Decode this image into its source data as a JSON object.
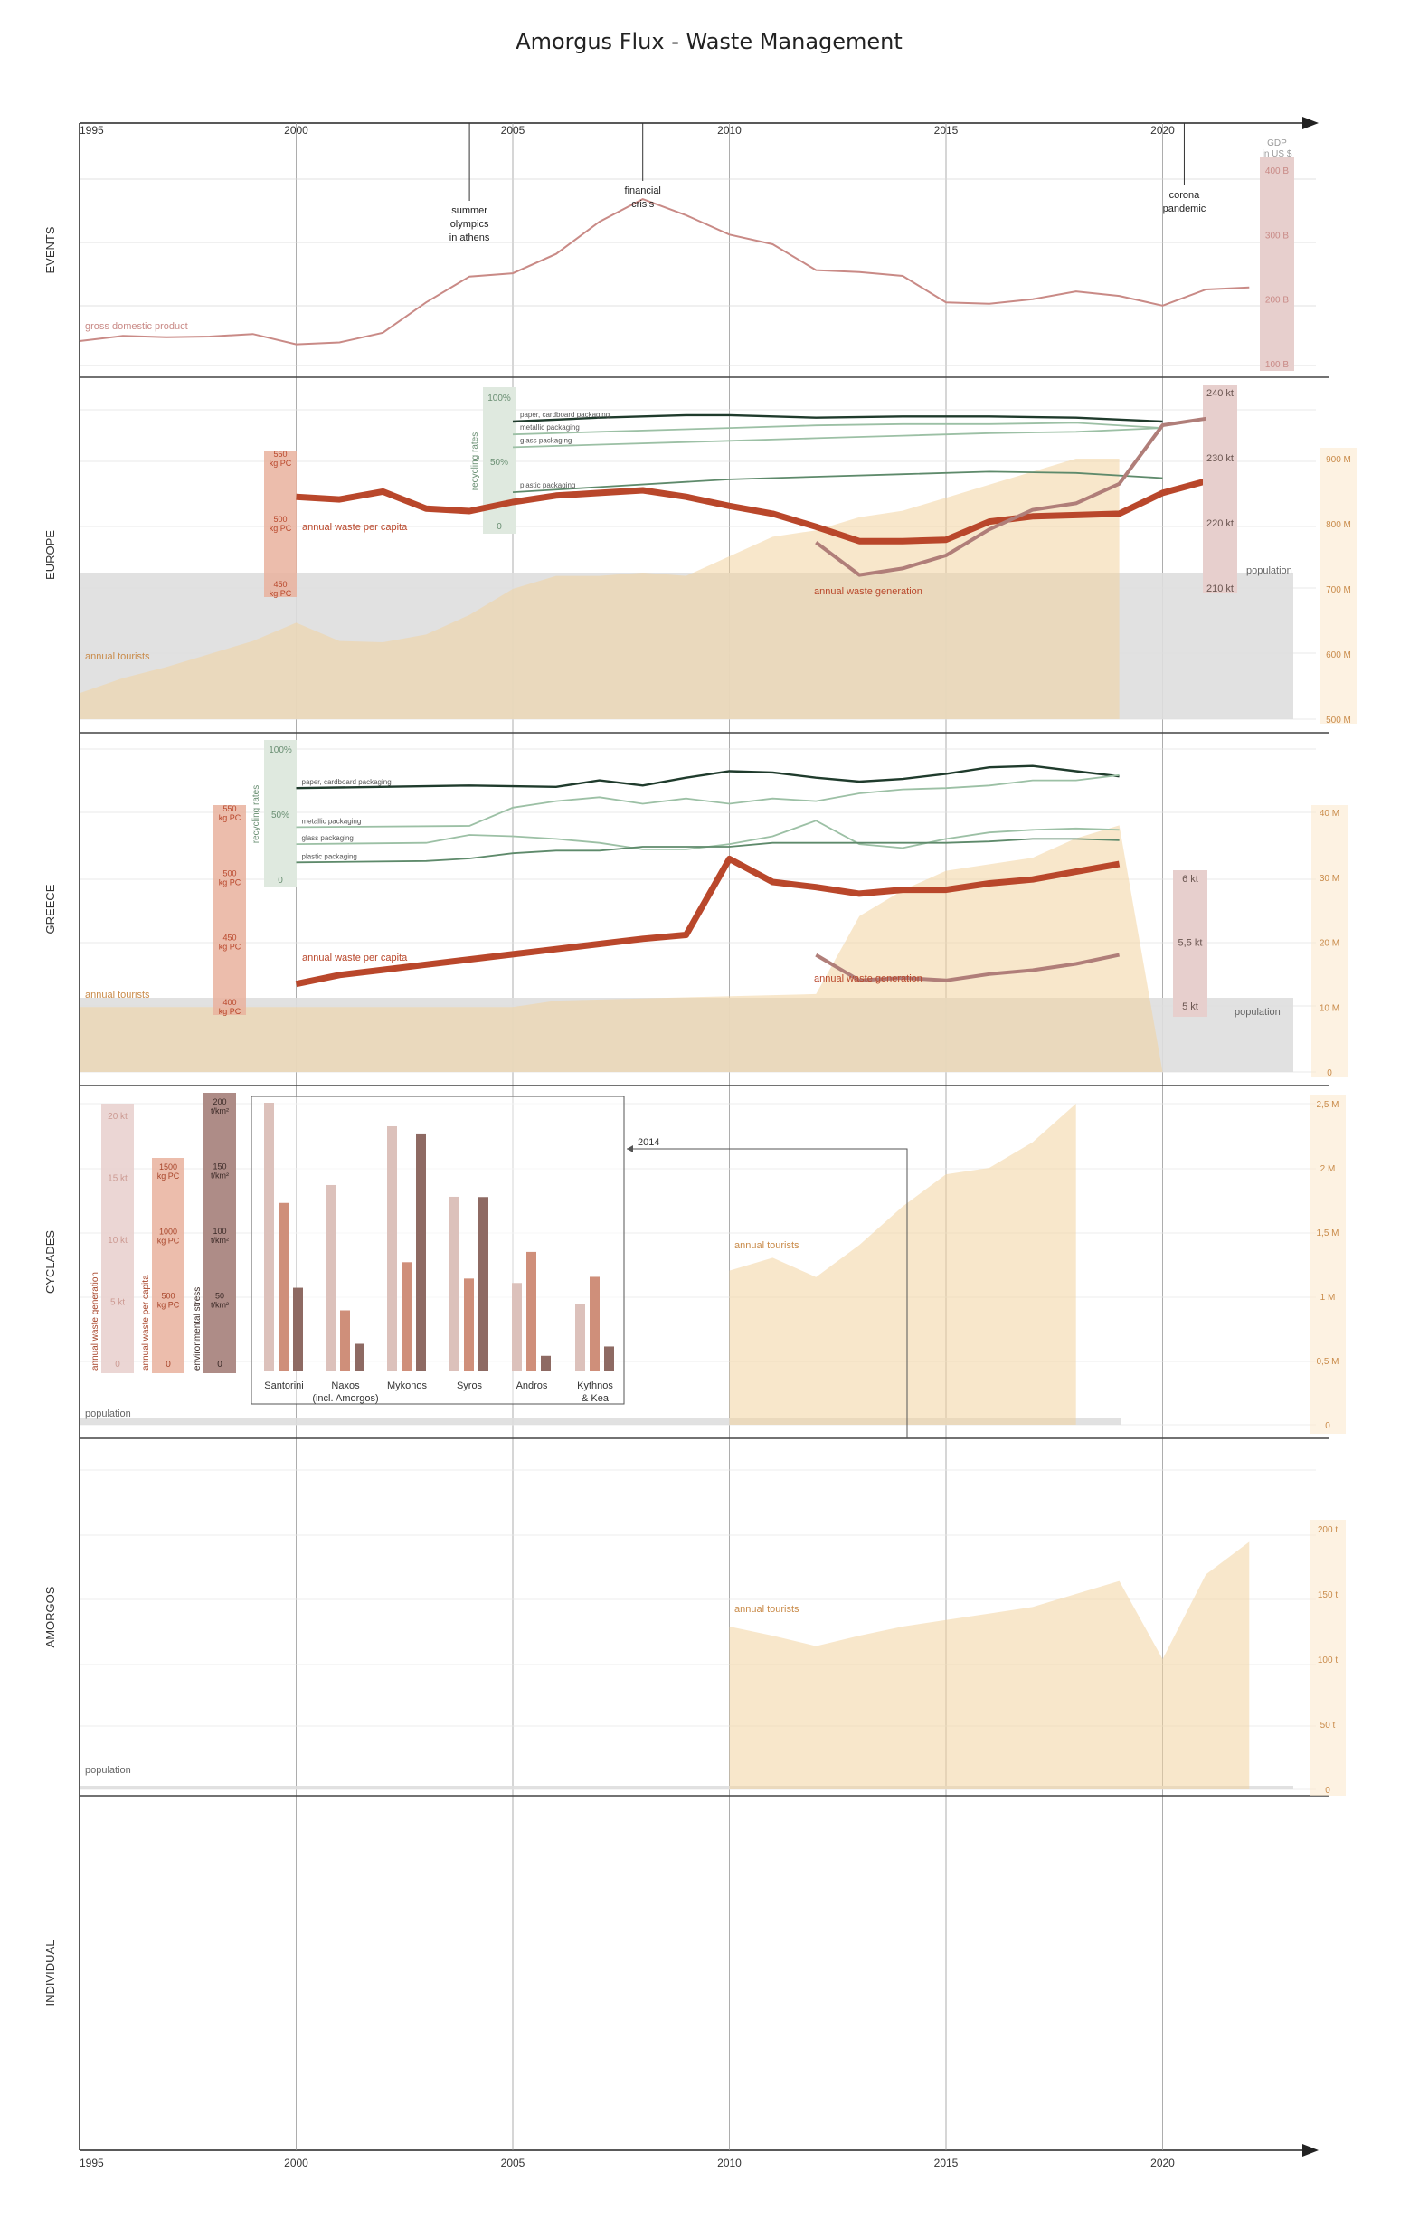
{
  "title": "Amorgus Flux - Waste Management",
  "colors": {
    "gdp": "#c98a86",
    "waste": "#b9472b",
    "waste_gen": "#b07e79",
    "tourists": "#f3d3a0",
    "population": "#dedede",
    "recycle_dark": "#1f3b2c",
    "recycle_mid": "#5e8a6b",
    "recycle_light": "#9cc0a5",
    "box_green": "#dfe9df",
    "box_orange": "#e9b29d",
    "box_pink": "#e7cfcd",
    "box_brown": "#a5807a"
  },
  "chart_data": {
    "type": "line",
    "x_axis": {
      "range": [
        1995,
        2023
      ],
      "tick_labels": [
        "1995",
        "2000",
        "2005",
        "2010",
        "2015",
        "2020"
      ]
    },
    "rows": [
      {
        "key": "events",
        "label": "EVENTS"
      },
      {
        "key": "europe",
        "label": "EUROPE"
      },
      {
        "key": "greece",
        "label": "GREECE"
      },
      {
        "key": "cyclades",
        "label": "CYCLADES"
      },
      {
        "key": "amorgos",
        "label": "AMORGOS"
      },
      {
        "key": "individual",
        "label": "INDIVIDUAL"
      }
    ],
    "events": {
      "annotations": [
        {
          "year": 2004,
          "text": "summer olympics in athens",
          "lines": [
            "summer",
            "olympics",
            "in athens"
          ]
        },
        {
          "year": 2008,
          "text": "financial crisis",
          "lines": [
            "financial",
            "crisis"
          ]
        },
        {
          "year": 2020.5,
          "text": "corona pandemic",
          "lines": [
            "corona",
            "pandemic"
          ]
        }
      ],
      "gdp_axis": {
        "title": "GDP in US $",
        "title_lines": [
          "GDP",
          "in US $"
        ],
        "ticks": [
          "400 B",
          "300 B",
          "200 B",
          "100 B"
        ],
        "ylim": [
          100,
          400
        ]
      },
      "gdp_label": "gross domestic product",
      "gdp_series": {
        "x": [
          1995,
          1996,
          1997,
          1998,
          1999,
          2000,
          2001,
          2002,
          2003,
          2004,
          2005,
          2006,
          2007,
          2008,
          2009,
          2010,
          2011,
          2012,
          2013,
          2014,
          2015,
          2016,
          2017,
          2018,
          2019,
          2020,
          2021,
          2022
        ],
        "y": [
          135,
          143,
          141,
          142,
          146,
          130,
          133,
          148,
          195,
          235,
          240,
          270,
          320,
          355,
          330,
          300,
          285,
          245,
          242,
          236,
          195,
          193,
          200,
          212,
          205,
          190,
          215,
          218
        ]
      }
    },
    "europe": {
      "recycling_axis": {
        "title": "recycling rates",
        "ticks": [
          "100%",
          "50%",
          "0"
        ]
      },
      "waste_pc_axis": {
        "ticks": [
          "550 kg PC",
          "500 kg PC",
          "450 kg PC"
        ],
        "ylim": [
          450,
          550
        ]
      },
      "waste_gen_axis": {
        "ticks": [
          "240 kt",
          "230 kt",
          "220 kt",
          "210 kt"
        ],
        "ylim": [
          210,
          240
        ]
      },
      "tourist_axis": {
        "ticks": [
          "900 M",
          "800 M",
          "700 M",
          "600 M",
          "500 M"
        ],
        "ylim": [
          500,
          900
        ]
      },
      "labels": {
        "waste_pc": "annual waste per capita",
        "waste_gen": "annual waste generation",
        "tourists": "annual tourists",
        "population": "population"
      },
      "recycling_series": [
        {
          "name": "paper, cardboard packaging",
          "x": [
            2005,
            2007,
            2009,
            2010,
            2012,
            2014,
            2016,
            2018,
            2020
          ],
          "y": [
            81,
            84,
            86,
            86,
            84,
            85,
            85,
            84,
            81
          ]
        },
        {
          "name": "metallic packaging",
          "x": [
            2005,
            2007,
            2009,
            2010,
            2012,
            2014,
            2016,
            2018,
            2020
          ],
          "y": [
            71,
            73,
            75,
            76,
            78,
            79,
            79,
            80,
            76
          ]
        },
        {
          "name": "glass packaging",
          "x": [
            2005,
            2007,
            2009,
            2010,
            2012,
            2014,
            2016,
            2018,
            2020
          ],
          "y": [
            61,
            63,
            65,
            66,
            68,
            70,
            72,
            73,
            76
          ]
        },
        {
          "name": "plastic packaging",
          "x": [
            2005,
            2007,
            2009,
            2010,
            2012,
            2014,
            2016,
            2018,
            2020
          ],
          "y": [
            26,
            30,
            34,
            36,
            38,
            40,
            42,
            41,
            37
          ]
        }
      ],
      "waste_pc_series": {
        "x": [
          2000,
          2001,
          2002,
          2003,
          2004,
          2005,
          2006,
          2007,
          2008,
          2009,
          2010,
          2011,
          2012,
          2013,
          2014,
          2015,
          2016,
          2017,
          2018,
          2019,
          2020,
          2021
        ],
        "y": [
          520,
          518,
          524,
          511,
          509,
          516,
          521,
          523,
          525,
          520,
          513,
          507,
          497,
          486,
          486,
          487,
          501,
          505,
          506,
          507,
          523,
          532
        ]
      },
      "waste_gen_series": {
        "x": [
          2012,
          2013,
          2014,
          2015,
          2016,
          2017,
          2018,
          2019,
          2020,
          2021
        ],
        "y": [
          217,
          212,
          213,
          215,
          219,
          222,
          223,
          226,
          235,
          236
        ]
      },
      "tourists": {
        "x": [
          1995,
          1996,
          1997,
          1998,
          1999,
          2000,
          2001,
          2002,
          2003,
          2004,
          2005,
          2006,
          2007,
          2008,
          2009,
          2010,
          2011,
          2012,
          2013,
          2014,
          2015,
          2016,
          2017,
          2018,
          2019
        ],
        "y": [
          540,
          563,
          580,
          600,
          620,
          648,
          620,
          618,
          630,
          660,
          700,
          720,
          720,
          725,
          720,
          750,
          780,
          790,
          810,
          820,
          840,
          860,
          880,
          900,
          900
        ]
      },
      "population": 725
    },
    "greece": {
      "recycling_axis": {
        "title": "recycling rates",
        "ticks": [
          "100%",
          "50%",
          "0"
        ]
      },
      "waste_pc_axis": {
        "ticks": [
          "550 kg PC",
          "500 kg PC",
          "450 kg PC",
          "400 kg PC"
        ],
        "ylim": [
          400,
          550
        ]
      },
      "waste_gen_axis": {
        "ticks": [
          "6 kt",
          "5,5 kt",
          "5 kt"
        ],
        "ylim": [
          5,
          6
        ]
      },
      "tourist_axis": {
        "ticks": [
          "40 M",
          "30 M",
          "20 M",
          "10 M",
          "0"
        ],
        "ylim": [
          0,
          40
        ]
      },
      "labels": {
        "waste_pc": "annual waste per capita",
        "waste_gen": "annual waste generation",
        "tourists": "annual tourists",
        "population": "population"
      },
      "recycling_series": [
        {
          "name": "paper, cardboard packaging",
          "x": [
            2000,
            2004,
            2006,
            2007,
            2008,
            2009,
            2010,
            2011,
            2012,
            2013,
            2014,
            2015,
            2016,
            2017,
            2018,
            2019
          ],
          "y": [
            70,
            72,
            71,
            76,
            72,
            78,
            83,
            82,
            78,
            75,
            77,
            81,
            86,
            87,
            83,
            79
          ]
        },
        {
          "name": "metallic packaging",
          "x": [
            2000,
            2004,
            2005,
            2006,
            2007,
            2008,
            2009,
            2010,
            2011,
            2012,
            2013,
            2014,
            2015,
            2016,
            2017,
            2018,
            2019
          ],
          "y": [
            40,
            41,
            55,
            60,
            63,
            58,
            62,
            58,
            62,
            60,
            66,
            69,
            70,
            72,
            76,
            76,
            80
          ]
        },
        {
          "name": "glass packaging",
          "x": [
            2000,
            2003,
            2004,
            2005,
            2006,
            2007,
            2008,
            2009,
            2010,
            2011,
            2012,
            2013,
            2014,
            2015,
            2016,
            2017,
            2018,
            2019
          ],
          "y": [
            27,
            28,
            34,
            33,
            31,
            28,
            23,
            23,
            27,
            33,
            45,
            27,
            24,
            31,
            36,
            38,
            39,
            38
          ]
        },
        {
          "name": "plastic packaging",
          "x": [
            2000,
            2003,
            2004,
            2005,
            2006,
            2007,
            2008,
            2009,
            2010,
            2011,
            2012,
            2013,
            2014,
            2015,
            2016,
            2017,
            2018,
            2019
          ],
          "y": [
            13,
            14,
            16,
            20,
            22,
            22,
            25,
            25,
            25,
            28,
            28,
            28,
            28,
            28,
            29,
            31,
            31,
            30
          ]
        }
      ],
      "waste_pc_series": {
        "x": [
          2000,
          2001,
          2002,
          2003,
          2004,
          2005,
          2006,
          2007,
          2008,
          2009,
          2010,
          2011,
          2012,
          2013,
          2014,
          2015,
          2016,
          2017,
          2018,
          2019
        ],
        "y": [
          417,
          424,
          428,
          432,
          436,
          440,
          444,
          448,
          452,
          455,
          514,
          496,
          492,
          487,
          490,
          490,
          495,
          498,
          504,
          510
        ]
      },
      "waste_gen_series": {
        "x": [
          2012,
          2013,
          2014,
          2015,
          2016,
          2017,
          2018,
          2019
        ],
        "y": [
          5.4,
          5.2,
          5.22,
          5.2,
          5.25,
          5.28,
          5.33,
          5.4
        ]
      },
      "tourists": {
        "x": [
          1995,
          2005,
          2006,
          2012,
          2013,
          2014,
          2015,
          2016,
          2017,
          2018,
          2019,
          2020
        ],
        "y": [
          10,
          10,
          11,
          12,
          24,
          28,
          31,
          32,
          33,
          36,
          38,
          0
        ]
      },
      "population": 11
    },
    "cyclades": {
      "axes": [
        {
          "title": "annual waste generation",
          "ticks": [
            "20 kt",
            "15 kt",
            "10 kt",
            "5 kt",
            "0"
          ]
        },
        {
          "title": "annual waste per capita",
          "ticks": [
            "1500 kg PC",
            "1000 kg PC",
            "500 kg PC",
            "0"
          ]
        },
        {
          "title": "environmental stress",
          "ticks": [
            "200 t/km²",
            "150 t/km²",
            "100 t/km²",
            "50 t/km²",
            "0"
          ]
        }
      ],
      "tourist_axis": {
        "ticks": [
          "2,5 M",
          "2 M",
          "1,5 M",
          "1 M",
          "0,5 M",
          "0"
        ],
        "ylim": [
          0,
          2.5
        ]
      },
      "labels": {
        "tourists": "annual tourists",
        "population": "population"
      },
      "bar_year": "2014",
      "bars": {
        "type": "bar",
        "categories": [
          "Santorini",
          "Naxos (incl. Amorgos)",
          "Mykonos",
          "Syros",
          "Andros",
          "Kythnos & Kea"
        ],
        "category_lines": [
          [
            "Santorini"
          ],
          [
            "Naxos",
            "(incl. Amorgos)"
          ],
          [
            "Mykonos"
          ],
          [
            "Syros"
          ],
          [
            "Andros"
          ],
          [
            "Kythnos",
            "& Kea"
          ]
        ],
        "series": [
          {
            "name": "annual waste generation",
            "values": [
              20.5,
              14.2,
              18.7,
              13.3,
              6.7,
              5.1
            ]
          },
          {
            "name": "annual waste per capita",
            "values": [
              975,
              350,
              630,
              535,
              690,
              545
            ]
          },
          {
            "name": "environmental stress",
            "values": [
              62,
              20,
              177,
              130,
              11,
              18
            ]
          }
        ]
      },
      "tourists": {
        "x": [
          2010,
          2011,
          2012,
          2013,
          2014,
          2015,
          2016,
          2017,
          2018
        ],
        "y": [
          1.2,
          1.3,
          1.15,
          1.4,
          1.7,
          1.95,
          2.0,
          2.2,
          2.5
        ]
      },
      "population": 0.03
    },
    "amorgos": {
      "tourist_axis": {
        "ticks": [
          "200 t",
          "150 t",
          "100 t",
          "50 t",
          "0"
        ],
        "ylim": [
          0,
          200
        ]
      },
      "labels": {
        "tourists": "annual tourists",
        "population": "population"
      },
      "tourists": {
        "x": [
          2010,
          2011,
          2012,
          2013,
          2014,
          2015,
          2016,
          2017,
          2018,
          2019,
          2020,
          2021,
          2022
        ],
        "y": [
          125,
          118,
          110,
          118,
          125,
          130,
          135,
          140,
          150,
          160,
          100,
          165,
          190
        ]
      },
      "population": 2
    }
  }
}
